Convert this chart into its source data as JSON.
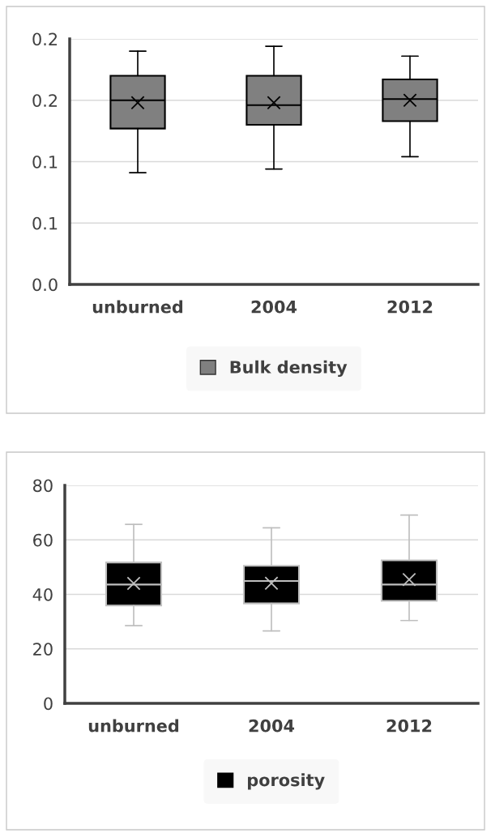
{
  "chart_data": [
    {
      "type": "box",
      "categories": [
        "unburned",
        "2004",
        "2012"
      ],
      "series": [
        {
          "name": "Bulk density",
          "color": "#808080",
          "boxes": [
            {
              "low": 0.091,
              "q1": 0.127,
              "median": 0.15,
              "q3": 0.17,
              "high": 0.19,
              "mean": 0.148
            },
            {
              "low": 0.094,
              "q1": 0.13,
              "median": 0.146,
              "q3": 0.17,
              "high": 0.194,
              "mean": 0.148
            },
            {
              "low": 0.104,
              "q1": 0.133,
              "median": 0.151,
              "q3": 0.167,
              "high": 0.186,
              "mean": 0.15
            }
          ]
        }
      ],
      "ylim": [
        0,
        0.2
      ],
      "yticks": [
        {
          "value": 0,
          "label": "0.0"
        },
        {
          "value": 0.05,
          "label": "0.1"
        },
        {
          "value": 0.1,
          "label": "0.1"
        },
        {
          "value": 0.15,
          "label": "0.2"
        },
        {
          "value": 0.2,
          "label": "0.2"
        }
      ],
      "grid": "y",
      "legend": "bottom"
    },
    {
      "type": "box",
      "categories": [
        "unburned",
        "2004",
        "2012"
      ],
      "series": [
        {
          "name": "porosity",
          "color": "#000000",
          "boxes": [
            {
              "low": 28.5,
              "q1": 35.9,
              "median": 43.6,
              "q3": 51.7,
              "high": 65.7,
              "mean": 44.0
            },
            {
              "low": 26.6,
              "q1": 36.7,
              "median": 44.9,
              "q3": 50.5,
              "high": 64.4,
              "mean": 44.1
            },
            {
              "low": 30.4,
              "q1": 37.6,
              "median": 43.6,
              "q3": 52.5,
              "high": 69.1,
              "mean": 45.4
            }
          ]
        }
      ],
      "ylim": [
        0,
        80
      ],
      "yticks": [
        0,
        20,
        40,
        60,
        80
      ],
      "grid": "y",
      "legend": "bottom"
    }
  ]
}
